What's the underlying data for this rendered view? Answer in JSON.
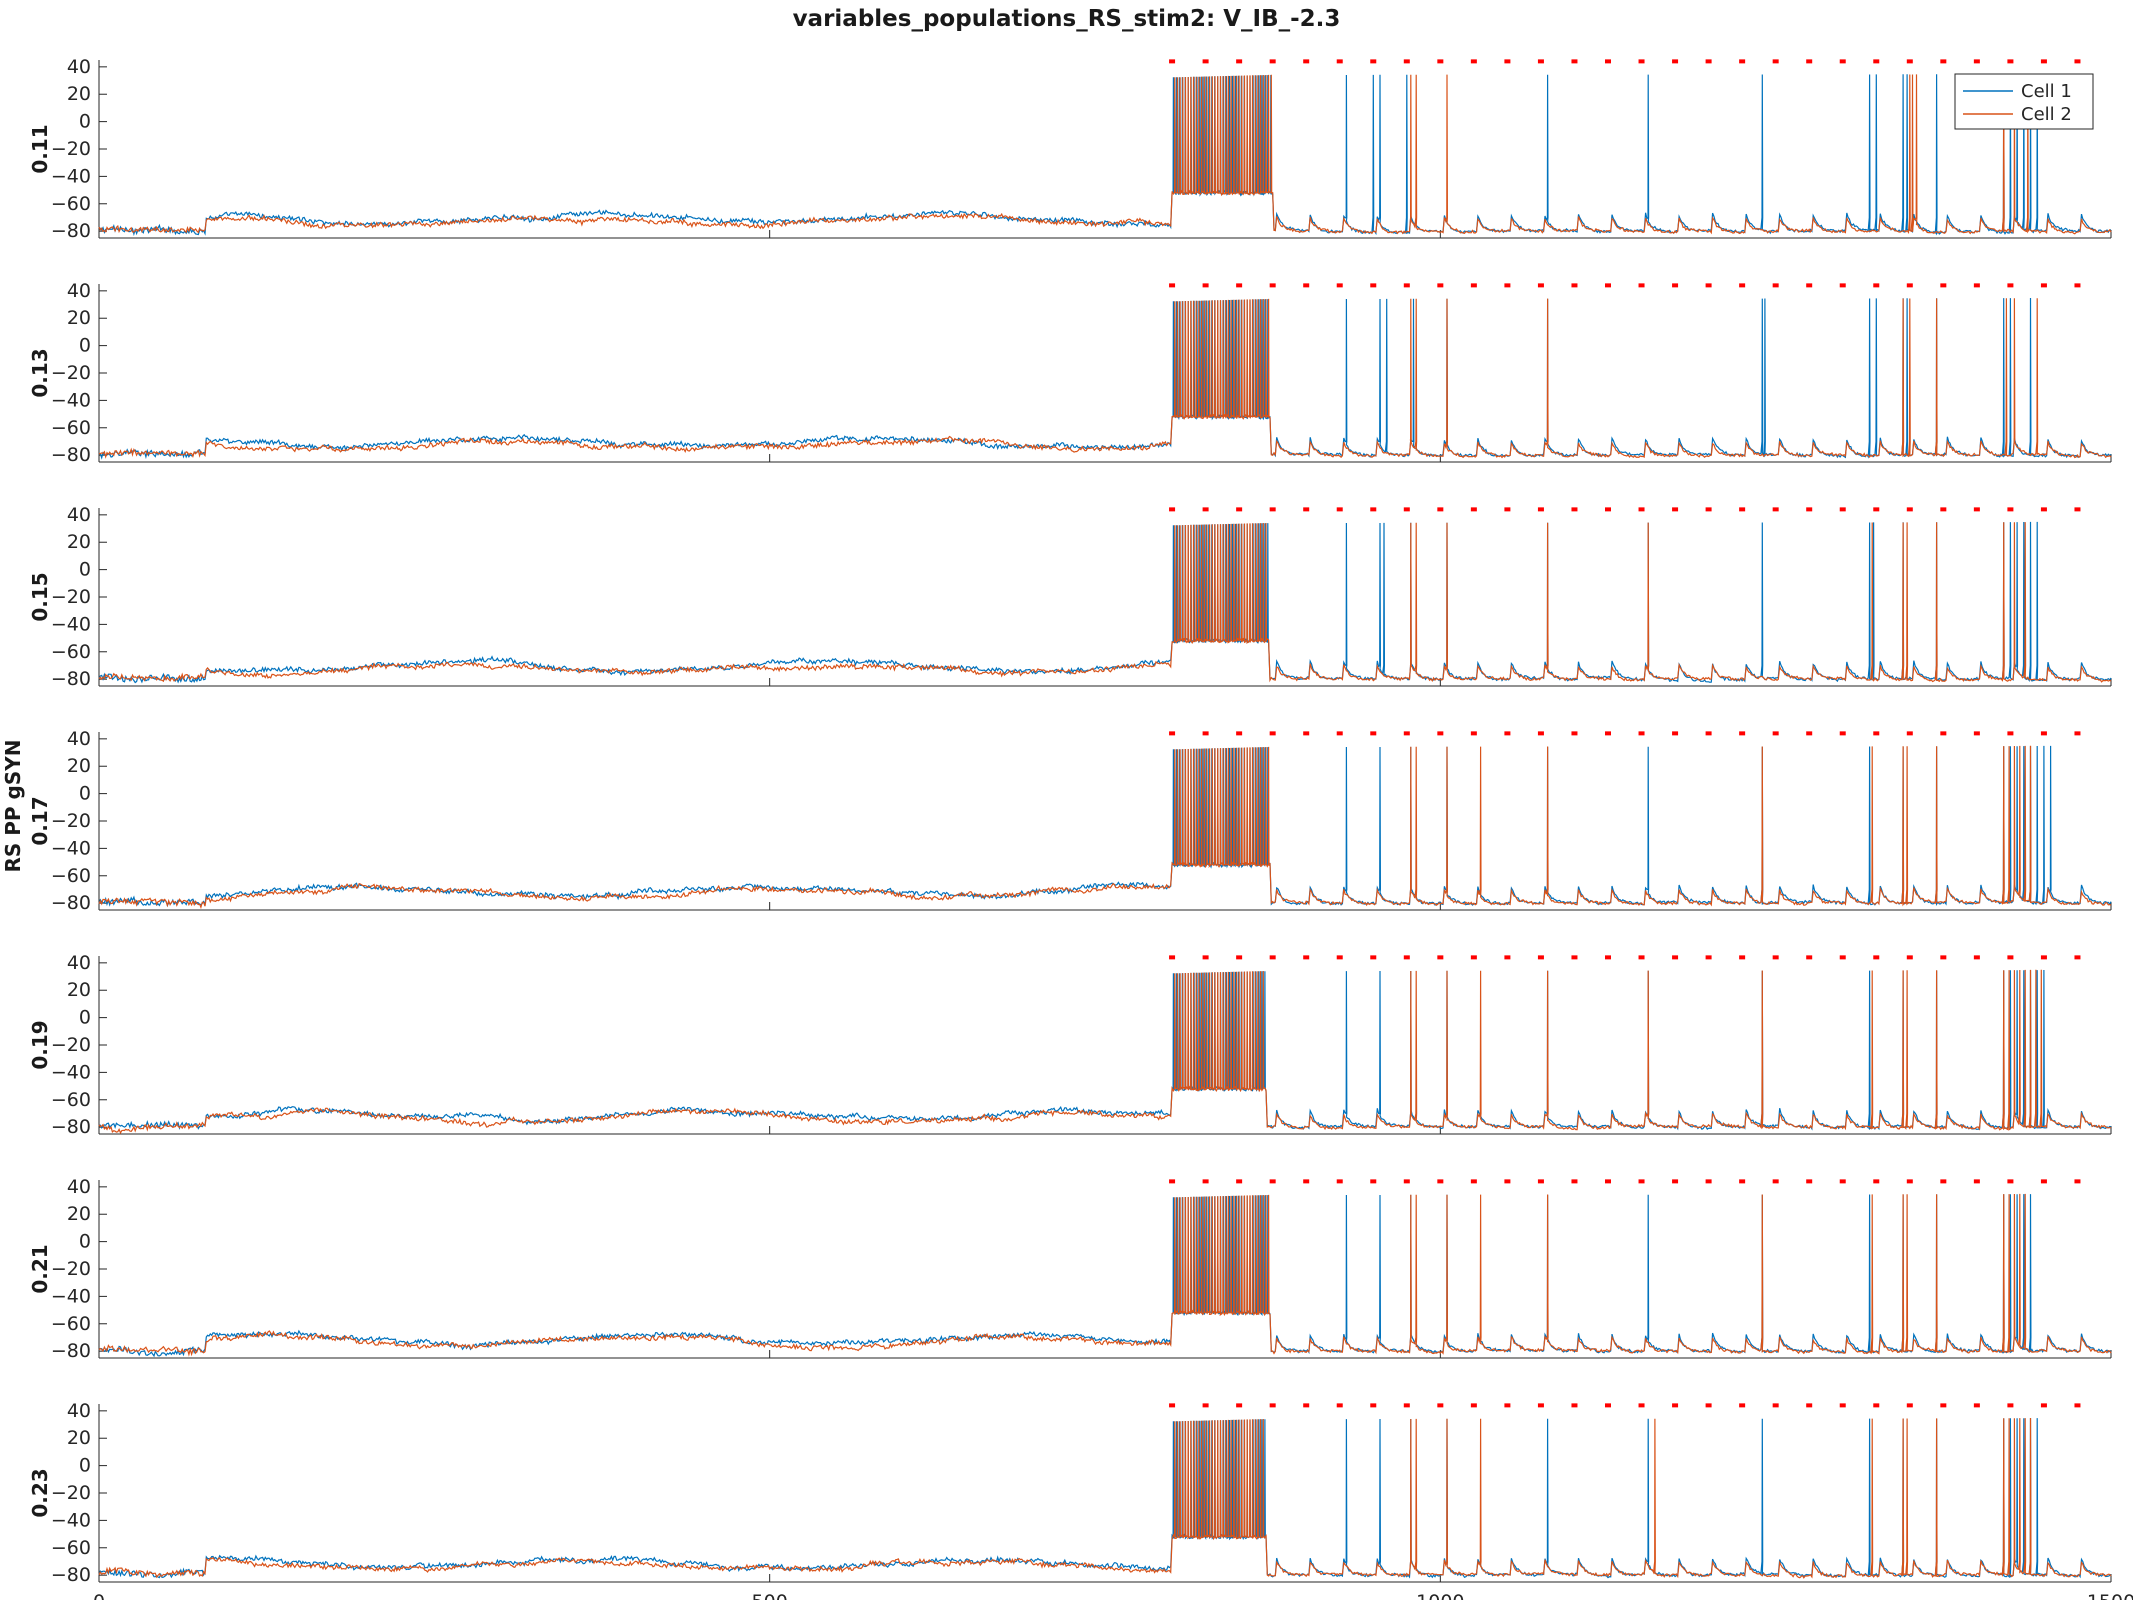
{
  "figure": {
    "title": "variables_populations_RS_stim2: V_IB_-2.3",
    "ylabel": "RS PP gSYN",
    "y_ticks": [
      "40",
      "20",
      "0",
      "-20",
      "-40",
      "-60",
      "-80"
    ],
    "x_ticks": [
      "0",
      "500",
      "1000",
      "1500"
    ]
  },
  "chart_data": {
    "type": "line",
    "title": "variables_populations_RS_stim2: V_IB_-2.3",
    "xlabel": "",
    "ylabel": "RS PP gSYN",
    "xlim": [
      0,
      1500
    ],
    "ylim": [
      -85,
      45
    ],
    "grid": false,
    "legend_placement": "top-right",
    "series": [
      {
        "name": "Cell 1",
        "color": "#0072BD"
      },
      {
        "name": "Cell 2",
        "color": "#D95319"
      }
    ],
    "stimulus_marker_color": "#FF0000",
    "stimulus_marker_y": 44,
    "stimulus_onset_x": 800,
    "panels": [
      {
        "row_label": "0.11",
        "burst": [
          800,
          875
        ],
        "cell1_spikes": [
          930,
          950,
          955,
          975,
          1080,
          1155,
          1240,
          1320,
          1325,
          1345,
          1348,
          1370,
          1420,
          1425,
          1430,
          1435,
          1440,
          1445
        ],
        "cell2_spikes": [
          978,
          982,
          1005,
          1350,
          1352,
          1355,
          1420,
          1428,
          1438
        ]
      },
      {
        "row_label": "0.13",
        "burst": [
          800,
          873
        ],
        "cell1_spikes": [
          930,
          955,
          960,
          980,
          1005,
          1080,
          1240,
          1242,
          1320,
          1325,
          1345,
          1348,
          1370,
          1420,
          1425,
          1440
        ],
        "cell2_spikes": [
          978,
          982,
          1005,
          1080,
          1345,
          1350,
          1370,
          1422,
          1428,
          1445
        ]
      },
      {
        "row_label": "0.15",
        "burst": [
          800,
          872
        ],
        "cell1_spikes": [
          930,
          955,
          958,
          978,
          1005,
          1080,
          1155,
          1240,
          1320,
          1323,
          1345,
          1370,
          1420,
          1425,
          1430,
          1435,
          1440,
          1445
        ],
        "cell2_spikes": [
          978,
          982,
          1005,
          1080,
          1155,
          1322,
          1345,
          1348,
          1370,
          1420,
          1428,
          1436
        ]
      },
      {
        "row_label": "0.17",
        "burst": [
          800,
          873
        ],
        "cell1_spikes": [
          930,
          955,
          978,
          1005,
          1080,
          1155,
          1240,
          1320,
          1345,
          1370,
          1420,
          1425,
          1430,
          1435,
          1440,
          1445,
          1450,
          1455
        ],
        "cell2_spikes": [
          978,
          982,
          1005,
          1030,
          1080,
          1240,
          1322,
          1345,
          1348,
          1370,
          1420,
          1424,
          1428,
          1432,
          1436,
          1440
        ]
      },
      {
        "row_label": "0.19",
        "burst": [
          800,
          870
        ],
        "cell1_spikes": [
          930,
          955,
          978,
          1005,
          1080,
          1155,
          1240,
          1320,
          1345,
          1370,
          1420,
          1425,
          1430,
          1435,
          1440,
          1445,
          1450
        ],
        "cell2_spikes": [
          978,
          982,
          1005,
          1030,
          1080,
          1155,
          1240,
          1322,
          1345,
          1348,
          1370,
          1420,
          1424,
          1428,
          1432,
          1436,
          1440,
          1444,
          1448
        ]
      },
      {
        "row_label": "0.21",
        "burst": [
          800,
          873
        ],
        "cell1_spikes": [
          930,
          955,
          978,
          1005,
          1080,
          1155,
          1240,
          1320,
          1345,
          1370,
          1420,
          1425,
          1430,
          1435,
          1440
        ],
        "cell2_spikes": [
          978,
          982,
          1005,
          1030,
          1080,
          1240,
          1322,
          1345,
          1348,
          1370,
          1420,
          1424,
          1428,
          1432,
          1436
        ]
      },
      {
        "row_label": "0.23",
        "burst": [
          800,
          870
        ],
        "cell1_spikes": [
          930,
          955,
          978,
          1005,
          1080,
          1155,
          1240,
          1320,
          1345,
          1370,
          1420,
          1425,
          1430,
          1435,
          1440,
          1445
        ],
        "cell2_spikes": [
          978,
          982,
          1005,
          1030,
          1160,
          1322,
          1345,
          1348,
          1370,
          1420,
          1424,
          1428,
          1432,
          1436,
          1440
        ]
      }
    ],
    "stim_times": [
      800,
      825,
      850,
      875,
      900,
      925,
      950,
      975,
      1000,
      1025,
      1050,
      1075,
      1100,
      1125,
      1150,
      1175,
      1200,
      1225,
      1250,
      1275,
      1300,
      1325,
      1350,
      1375,
      1400,
      1425,
      1450,
      1475
    ]
  }
}
